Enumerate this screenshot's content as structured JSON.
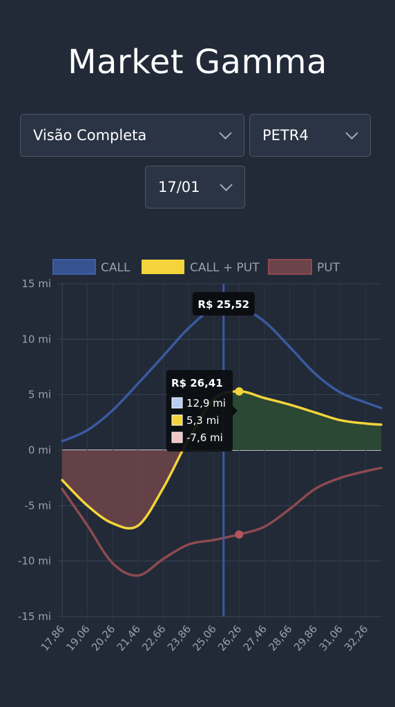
{
  "header": {
    "title": "Market Gamma"
  },
  "filters": {
    "view": "Visão Completa",
    "ticker": "PETR4",
    "expiry": "17/01"
  },
  "colors": {
    "call": "#3a5aa0",
    "total": "#f4d43a",
    "put": "#8e4a50",
    "positive_fill": "#2c4a34",
    "negative_fill": "#6a4448"
  },
  "chart_data": {
    "type": "line",
    "title": "",
    "xlabel": "",
    "ylabel": "",
    "x": [
      17.86,
      19.06,
      20.26,
      21.46,
      22.66,
      23.86,
      25.06,
      26.26,
      27.46,
      28.66,
      29.86,
      31.06,
      32.26,
      33.0
    ],
    "x_tick_labels": [
      "17,86",
      "19,06",
      "20,26",
      "21,46",
      "22,66",
      "23,86",
      "25,06",
      "26,26",
      "27,46",
      "28,66",
      "29,86",
      "31,06",
      "32,26"
    ],
    "ylim": [
      -15,
      15
    ],
    "y_ticks": [
      15,
      10,
      5,
      0,
      -5,
      -10,
      -15
    ],
    "y_tick_labels": [
      "15 mi",
      "10 mi",
      "5 mi",
      "0 mi",
      "-5 mi",
      "-10 mi",
      "-15 mi"
    ],
    "legend": "top",
    "series": [
      {
        "name": "CALL",
        "values": [
          0.8,
          1.8,
          3.6,
          6.0,
          8.5,
          11.0,
          12.8,
          12.9,
          11.6,
          9.3,
          6.9,
          5.2,
          4.3,
          3.8
        ]
      },
      {
        "name": "CALL + PUT",
        "values": [
          -2.7,
          -5.0,
          -6.6,
          -6.8,
          -3.4,
          1.0,
          4.6,
          5.3,
          4.7,
          4.1,
          3.4,
          2.7,
          2.4,
          2.3
        ]
      },
      {
        "name": "PUT",
        "values": [
          -3.5,
          -6.8,
          -10.2,
          -11.3,
          -9.8,
          -8.5,
          -8.1,
          -7.6,
          -6.9,
          -5.3,
          -3.5,
          -2.5,
          -1.9,
          -1.6
        ]
      }
    ],
    "crosshair": {
      "x": 25.52,
      "label": "R$ 25,52"
    },
    "tooltip": {
      "title": "R$ 26,41",
      "items": [
        {
          "label": "12,9 mi",
          "color": "#b9cdf2"
        },
        {
          "label": "5,3 mi",
          "color": "#f4d43a"
        },
        {
          "label": "-7,6 mi",
          "color": "#f1c4c6"
        }
      ]
    }
  }
}
